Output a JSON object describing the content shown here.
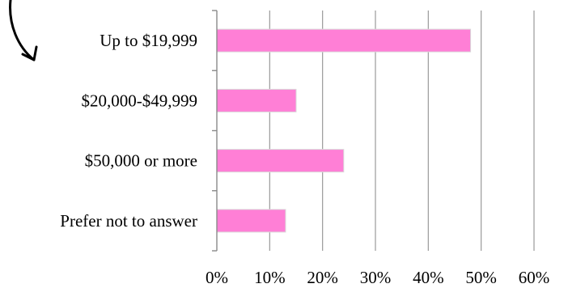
{
  "chart_data": {
    "type": "bar",
    "orientation": "horizontal",
    "categories": [
      "Up to $19,999",
      "$20,000-$49,999",
      "$50,000 or more",
      "Prefer not to answer"
    ],
    "values": [
      48,
      15,
      24,
      13
    ],
    "unit": "%",
    "xlim": [
      0,
      60
    ],
    "ticks": [
      0,
      10,
      20,
      30,
      40,
      50,
      60
    ],
    "tick_labels": [
      "0%",
      "10%",
      "20%",
      "30%",
      "40%",
      "50%",
      "60%"
    ],
    "grid": "vertical",
    "bar_color": "#ff7fd6",
    "bar_edge_color": "#ffffff"
  }
}
